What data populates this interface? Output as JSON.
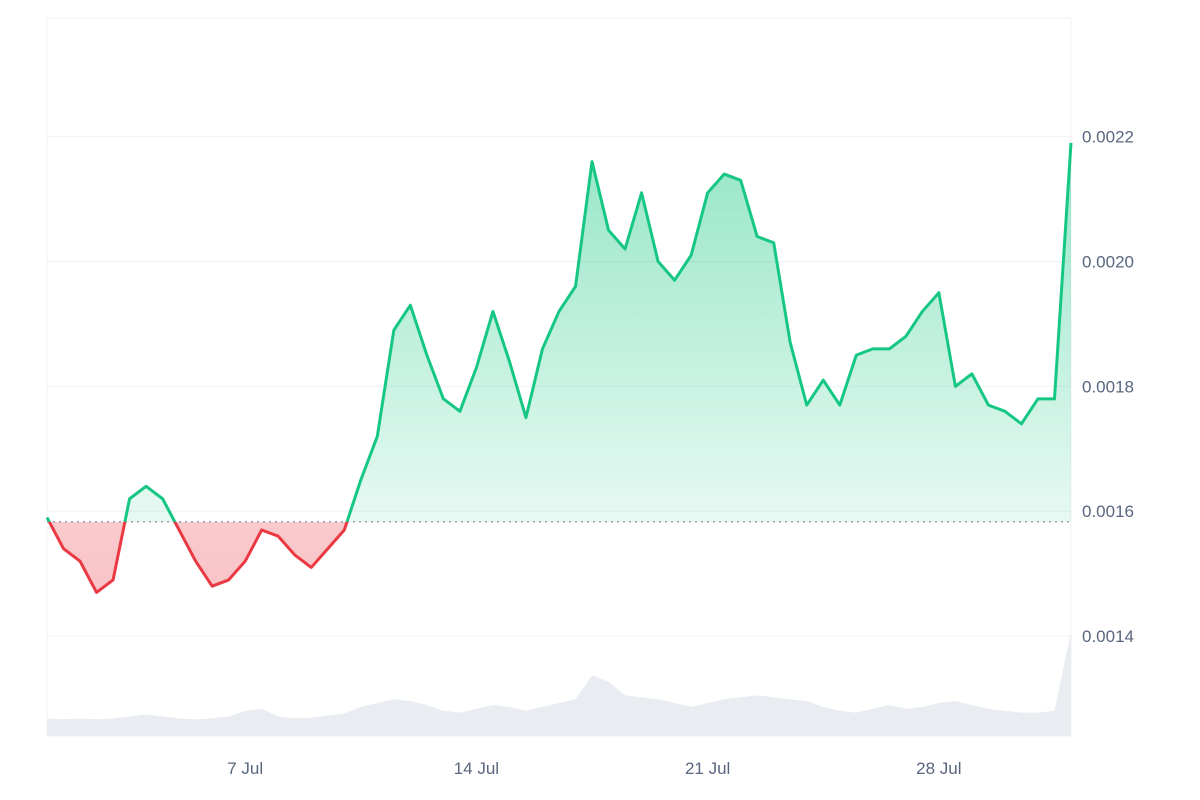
{
  "chart_data": {
    "type": "area",
    "title": "",
    "xlabel": "",
    "ylabel": "",
    "x_axis_type": "date",
    "x_range": [
      "2024-07-01",
      "2024-08-01"
    ],
    "ylim": [
      0.00124,
      0.00239
    ],
    "baseline": 0.001583,
    "y_ticks": [
      "0.0014",
      "0.0016",
      "0.0018",
      "0.0020",
      "0.0022"
    ],
    "x_ticks": [
      "7 Jul",
      "14 Jul",
      "21 Jul",
      "28 Jul"
    ],
    "x_tick_dates": [
      "2024-07-07",
      "2024-07-14",
      "2024-07-21",
      "2024-07-28"
    ],
    "grid": true,
    "colors": {
      "up": "#16c784",
      "down": "#ea3943",
      "grid": "#eff2f5",
      "baseline": "#8a94a6",
      "volume": "#e9edf1"
    },
    "series": [
      {
        "x": [
          "2024-07-01",
          "2024-07-01T12:00",
          "2024-07-02",
          "2024-07-02T12:00",
          "2024-07-03",
          "2024-07-03T12:00",
          "2024-07-04",
          "2024-07-04T12:00",
          "2024-07-05",
          "2024-07-05T12:00",
          "2024-07-06",
          "2024-07-06T12:00",
          "2024-07-07",
          "2024-07-07T12:00",
          "2024-07-08",
          "2024-07-08T12:00",
          "2024-07-09",
          "2024-07-09T12:00",
          "2024-07-10",
          "2024-07-10T12:00",
          "2024-07-11",
          "2024-07-11T12:00",
          "2024-07-12",
          "2024-07-12T12:00",
          "2024-07-13",
          "2024-07-13T12:00",
          "2024-07-14",
          "2024-07-14T12:00",
          "2024-07-15",
          "2024-07-15T12:00",
          "2024-07-16",
          "2024-07-16T12:00",
          "2024-07-17",
          "2024-07-17T12:00",
          "2024-07-18",
          "2024-07-18T12:00",
          "2024-07-19",
          "2024-07-19T12:00",
          "2024-07-20",
          "2024-07-20T12:00",
          "2024-07-21",
          "2024-07-21T12:00",
          "2024-07-22",
          "2024-07-22T12:00",
          "2024-07-23",
          "2024-07-23T12:00",
          "2024-07-24",
          "2024-07-24T12:00",
          "2024-07-25",
          "2024-07-25T12:00",
          "2024-07-26",
          "2024-07-26T12:00",
          "2024-07-27",
          "2024-07-27T12:00",
          "2024-07-28",
          "2024-07-28T12:00",
          "2024-07-29",
          "2024-07-29T12:00",
          "2024-07-30",
          "2024-07-30T12:00",
          "2024-07-31",
          "2024-07-31T12:00",
          "2024-08-01"
        ],
        "values": [
          0.00159,
          0.00154,
          0.00152,
          0.00147,
          0.00149,
          0.00162,
          0.00164,
          0.00162,
          0.00157,
          0.00152,
          0.00148,
          0.00149,
          0.00152,
          0.00157,
          0.00156,
          0.00153,
          0.00151,
          0.00154,
          0.00157,
          0.00165,
          0.00172,
          0.00189,
          0.00193,
          0.00185,
          0.00178,
          0.00176,
          0.00183,
          0.00192,
          0.00184,
          0.00175,
          0.00186,
          0.00192,
          0.00196,
          0.00216,
          0.00205,
          0.00202,
          0.00211,
          0.002,
          0.00197,
          0.00201,
          0.00211,
          0.00214,
          0.00213,
          0.00204,
          0.00203,
          0.00187,
          0.00177,
          0.00181,
          0.00177,
          0.00185,
          0.00186,
          0.00186,
          0.00188,
          0.00192,
          0.00195,
          0.0018,
          0.00182,
          0.00177,
          0.00176,
          0.00174,
          0.00178,
          0.00178,
          0.00219
        ]
      }
    ],
    "volume": [
      0.1,
      0.09,
      0.1,
      0.09,
      0.1,
      0.12,
      0.14,
      0.12,
      0.1,
      0.09,
      0.1,
      0.12,
      0.18,
      0.2,
      0.12,
      0.1,
      0.11,
      0.13,
      0.15,
      0.22,
      0.26,
      0.3,
      0.28,
      0.24,
      0.18,
      0.16,
      0.2,
      0.24,
      0.22,
      0.18,
      0.22,
      0.26,
      0.3,
      0.55,
      0.48,
      0.34,
      0.32,
      0.3,
      0.26,
      0.22,
      0.26,
      0.3,
      0.32,
      0.34,
      0.32,
      0.3,
      0.28,
      0.22,
      0.18,
      0.16,
      0.2,
      0.24,
      0.2,
      0.22,
      0.26,
      0.28,
      0.24,
      0.2,
      0.18,
      0.16,
      0.16,
      0.18,
      1.0
    ]
  }
}
